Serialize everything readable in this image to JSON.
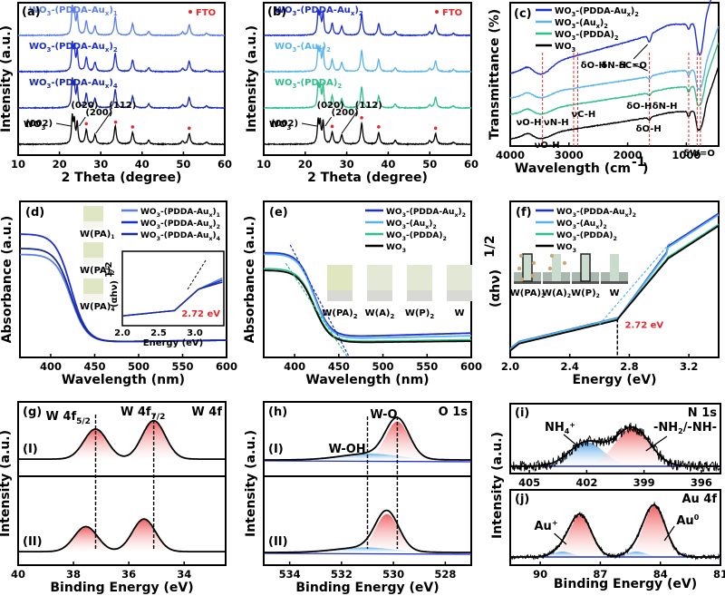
{
  "figure_title": "",
  "chart_data": [
    {
      "id": "a",
      "panel_label": "(a)",
      "type": "line",
      "xlabel": "2 Theta (degree)",
      "ylabel": "Intensity (a.u.)",
      "xlim": [
        10,
        60
      ],
      "xticks": [
        10,
        20,
        30,
        40,
        50,
        60
      ],
      "legend_marker": "FTO",
      "legend_marker_color": "#e8262b",
      "series": [
        {
          "name": "WO3-(PDDA-Aux)1",
          "label_main": "WO",
          "label_sub": "3",
          "label_rest": "-(PDDA-Au",
          "label_sub2": "x",
          "label_end": ")",
          "label_sub3": "1",
          "color": "#5b7fe8",
          "offset": 3
        },
        {
          "name": "WO3-(PDDA-Aux)2",
          "label_main": "WO",
          "label_sub": "3",
          "label_rest": "-(PDDA-Au",
          "label_sub2": "x",
          "label_end": ")",
          "label_sub3": "2",
          "color": "#1e2fd0",
          "offset": 2
        },
        {
          "name": "WO3-(PDDA-Aux)4",
          "label_main": "WO",
          "label_sub": "3",
          "label_rest": "-(PDDA-Au",
          "label_sub2": "x",
          "label_end": ")",
          "label_sub3": "4",
          "color": "#1a2aa8",
          "offset": 1
        },
        {
          "name": "WO3",
          "label_main": "WO",
          "label_sub": "3",
          "label_rest": "",
          "label_sub2": "",
          "label_end": "",
          "label_sub3": "",
          "color": "#000000",
          "offset": 0
        }
      ],
      "peaks": [
        [
          23.1,
          1.0
        ],
        [
          23.6,
          0.85
        ],
        [
          24.3,
          0.8
        ],
        [
          26.5,
          0.55
        ],
        [
          28.6,
          0.35
        ],
        [
          33.5,
          0.7
        ],
        [
          37.7,
          0.45
        ],
        [
          41.6,
          0.15
        ],
        [
          49.8,
          0.12
        ],
        [
          51.4,
          0.4
        ],
        [
          55.6,
          0.08
        ]
      ],
      "annotations": [
        "(002)",
        "(020)",
        "(200)",
        "(112)"
      ],
      "fto_peaks": [
        26.5,
        33.6,
        37.7,
        51.4
      ]
    },
    {
      "id": "b",
      "panel_label": "(b)",
      "type": "line",
      "xlabel": "2 Theta (degree)",
      "ylabel": "Intensity (a.u.)",
      "xlim": [
        10,
        60
      ],
      "xticks": [
        10,
        20,
        30,
        40,
        50,
        60
      ],
      "legend_marker": "FTO",
      "legend_marker_color": "#e8262b",
      "series": [
        {
          "name": "WO3-(PDDA-Aux)2",
          "label_main": "WO",
          "label_sub": "3",
          "label_rest": "-(PDDA-Au",
          "label_sub2": "x",
          "label_end": ")",
          "label_sub3": "2",
          "color": "#1e2fd0",
          "offset": 3
        },
        {
          "name": "WO3-(Aux)2",
          "label_main": "WO",
          "label_sub": "3",
          "label_rest": "-(Au",
          "label_sub2": "x",
          "label_end": ")",
          "label_sub3": "2",
          "color": "#5ab4ec",
          "offset": 2
        },
        {
          "name": "WO3-(PDDA)2",
          "label_main": "WO",
          "label_sub": "3",
          "label_rest": "-(PDDA)",
          "label_sub2": "",
          "label_end": "",
          "label_sub3": "2",
          "color": "#2ec08a",
          "offset": 1
        },
        {
          "name": "WO3",
          "label_main": "WO",
          "label_sub": "3",
          "label_rest": "",
          "label_sub2": "",
          "label_end": "",
          "label_sub3": "",
          "color": "#000000",
          "offset": 0
        }
      ],
      "peaks": [
        [
          23.1,
          0.85
        ],
        [
          23.6,
          0.8
        ],
        [
          24.3,
          0.85
        ],
        [
          26.5,
          0.45
        ],
        [
          28.8,
          0.35
        ],
        [
          33.6,
          0.8
        ],
        [
          37.7,
          0.45
        ],
        [
          41.7,
          0.15
        ],
        [
          50.0,
          0.12
        ],
        [
          51.4,
          0.4
        ],
        [
          55.7,
          0.08
        ]
      ],
      "annotations": [
        "(002)",
        "(020)",
        "(200)",
        "(112)"
      ],
      "fto_peaks": [
        26.5,
        33.6,
        37.7,
        51.4
      ]
    },
    {
      "id": "c",
      "panel_label": "(c)",
      "type": "line",
      "xlabel": "Wavelength (cm-1)",
      "ylabel": "Transmittance (%)",
      "xlim": [
        4000,
        450
      ],
      "xticks": [
        4000,
        3000,
        2000,
        1000
      ],
      "series": [
        {
          "name": "WO3-(PDDA-Aux)2",
          "color": "#1e2fd0",
          "offset": 3
        },
        {
          "name": "WO3-(Aux)2",
          "color": "#5ab4ec",
          "offset": 2
        },
        {
          "name": "WO3-(PDDA)2",
          "color": "#2ec08a",
          "offset": 1
        },
        {
          "name": "WO3",
          "color": "#000000",
          "offset": 0
        }
      ],
      "legend_labels": [
        {
          "main": "WO",
          "sub": "3",
          "rest": "-(PDDA-Au",
          "sub2": "x",
          "end": ")",
          "sub3": "2",
          "color": "#1e2fd0"
        },
        {
          "main": "WO",
          "sub": "3",
          "rest": "-(Au",
          "sub2": "x",
          "end": ")",
          "sub3": "2",
          "color": "#5ab4ec"
        },
        {
          "main": "WO",
          "sub": "3",
          "rest": "-(PDDA)",
          "sub2": "",
          "end": "",
          "sub3": "2",
          "color": "#2ec08a"
        },
        {
          "main": "WO",
          "sub": "3",
          "rest": "",
          "sub2": "",
          "end": "",
          "sub3": "",
          "color": "#000000"
        }
      ],
      "reference_lines": [
        3450,
        2920,
        2850,
        1630,
        960,
        815,
        760
      ],
      "annotations": [
        "δO-H",
        "δN-H",
        "δC=O",
        "νC-H",
        "νO-H",
        "νN-H",
        "δO-H",
        "δN-H",
        "δO-H",
        "νO-H",
        "δW=O"
      ]
    },
    {
      "id": "d",
      "panel_label": "(d)",
      "type": "line",
      "xlabel": "Wavelength (nm)",
      "ylabel": "Absorbance (a.u.)",
      "xlim": [
        365,
        600
      ],
      "xticks": [
        400,
        450,
        500,
        550,
        600
      ],
      "series": [
        {
          "name": "WO3-(PDDA-Aux)1",
          "color": "#5b7fe8",
          "start": 0.78
        },
        {
          "name": "WO3-(PDDA-Aux)2",
          "color": "#1e2fd0",
          "start": 0.95
        },
        {
          "name": "WO3-(PDDA-Aux)4",
          "color": "#1a2a9a",
          "start": 0.83
        }
      ],
      "legend_labels": [
        {
          "main": "WO",
          "sub": "3",
          "rest": "-(PDDA-Au",
          "sub2": "x",
          "end": ")",
          "sub3": "1"
        },
        {
          "main": "WO",
          "sub": "3",
          "rest": "-(PDDA-Au",
          "sub2": "x",
          "end": ")",
          "sub3": "2"
        },
        {
          "main": "WO",
          "sub": "3",
          "rest": "-(PDDA-Au",
          "sub2": "x",
          "end": ")",
          "sub3": "4"
        }
      ],
      "photo_labels": [
        "W(PA)1",
        "W(PA)2",
        "W(PA)4"
      ],
      "inset": {
        "xlabel": "Energy (eV)",
        "ylabel": "(αhν)1/2",
        "xlim": [
          2.0,
          3.4
        ],
        "xticks": [
          2.0,
          2.5,
          3.0
        ],
        "bandgap_label": "2.72 eV",
        "bandgap": 2.72
      }
    },
    {
      "id": "e",
      "panel_label": "(e)",
      "type": "line",
      "xlabel": "Wavelength (nm)",
      "ylabel": "Absorbance (a.u.)",
      "xlim": [
        365,
        600
      ],
      "xticks": [
        400,
        450,
        500,
        550,
        600
      ],
      "series": [
        {
          "name": "WO3-(PDDA-Aux)2",
          "color": "#1e2fd0",
          "start": 0.95,
          "tail": 0.1
        },
        {
          "name": "WO3-(Aux)2",
          "color": "#5ab4ec",
          "start": 0.93,
          "tail": 0.08
        },
        {
          "name": "WO3-(PDDA)2",
          "color": "#2ec08a",
          "start": 0.78,
          "tail": 0.05
        },
        {
          "name": "WO3",
          "color": "#000000",
          "start": 0.76,
          "tail": 0.04
        }
      ],
      "legend_labels": [
        {
          "main": "WO",
          "sub": "3",
          "rest": "-(PDDA-Au",
          "sub2": "x",
          "end": ")",
          "sub3": "2",
          "color": "#1e2fd0"
        },
        {
          "main": "WO",
          "sub": "3",
          "rest": "-(Au",
          "sub2": "x",
          "end": ")",
          "sub3": "2",
          "color": "#5ab4ec"
        },
        {
          "main": "WO",
          "sub": "3",
          "rest": "-(PDDA)",
          "sub2": "",
          "end": "",
          "sub3": "2",
          "color": "#2ec08a"
        },
        {
          "main": "WO",
          "sub": "3",
          "rest": "",
          "sub2": "",
          "end": "",
          "sub3": "",
          "color": "#000000"
        }
      ],
      "photo_labels": [
        "W(PA)2",
        "W(A)2",
        "W(P)2",
        "W"
      ]
    },
    {
      "id": "f",
      "panel_label": "(f)",
      "type": "line",
      "xlabel": "Energy (eV)",
      "ylabel": "(αhν)1/2",
      "xlim": [
        2.0,
        3.4
      ],
      "xticks": [
        2.0,
        2.4,
        2.8,
        3.2
      ],
      "bandgap": 2.72,
      "bandgap_label": "2.72 eV",
      "series": [
        {
          "name": "WO3-(PDDA-Aux)2",
          "color": "#1e2fd0"
        },
        {
          "name": "WO3-(Aux)2",
          "color": "#5ab4ec"
        },
        {
          "name": "WO3-(PDDA)2",
          "color": "#2ec08a"
        },
        {
          "name": "WO3",
          "color": "#000000"
        }
      ],
      "legend_labels": [
        {
          "main": "WO",
          "sub": "3",
          "rest": "-(PDDA-Au",
          "sub2": "x",
          "end": ")",
          "sub3": "2",
          "color": "#1e2fd0"
        },
        {
          "main": "WO",
          "sub": "3",
          "rest": "-(Au",
          "sub2": "x",
          "end": ")",
          "sub3": "2",
          "color": "#5ab4ec"
        },
        {
          "main": "WO",
          "sub": "3",
          "rest": "-(PDDA)",
          "sub2": "",
          "end": "",
          "sub3": "2",
          "color": "#2ec08a"
        },
        {
          "main": "WO",
          "sub": "3",
          "rest": "",
          "sub2": "",
          "end": "",
          "sub3": "",
          "color": "#000000"
        }
      ],
      "schematic_labels": [
        "W(PA)2",
        "W(A)2",
        "W(P)2",
        "W"
      ]
    },
    {
      "id": "g",
      "panel_label": "(g)",
      "type": "line",
      "xlabel": "Binding Energy (eV)",
      "ylabel": "Intensity (a.u.)",
      "xlim": [
        40,
        32.5
      ],
      "xticks": [
        40,
        38,
        36,
        34
      ],
      "region": "W 4f",
      "peak_labels": [
        "W 4f5/2",
        "W 4f7/2"
      ],
      "reference_lines": [
        37.2,
        35.1
      ],
      "series": [
        {
          "name": "(I)",
          "peaks": [
            [
              37.2,
              0.72
            ],
            [
              35.1,
              0.92
            ]
          ]
        },
        {
          "name": "(II)",
          "peaks": [
            [
              37.55,
              0.6
            ],
            [
              35.45,
              0.78
            ]
          ]
        }
      ]
    },
    {
      "id": "h",
      "panel_label": "(h)",
      "type": "line",
      "xlabel": "Binding Energy (eV)",
      "ylabel": "Intensity (a.u.)",
      "xlim": [
        535,
        527
      ],
      "xticks": [
        534,
        532,
        530,
        528
      ],
      "region": "O 1s",
      "peak_labels": [
        "W-O",
        "W-OH"
      ],
      "reference_lines": [
        531.0,
        529.85
      ],
      "series": [
        {
          "name": "(I)",
          "peaks": [
            [
              529.85,
              0.92
            ],
            [
              530.9,
              0.15
            ]
          ]
        },
        {
          "name": "(II)",
          "peaks": [
            [
              530.25,
              0.92
            ],
            [
              531.1,
              0.12
            ]
          ]
        }
      ]
    },
    {
      "id": "i",
      "panel_label": "(i)",
      "type": "line",
      "xlabel": "",
      "ylabel": "Intensity (a.u.)",
      "xlim": [
        406,
        395
      ],
      "xticks": [
        405,
        402,
        399,
        396
      ],
      "region": "N 1s",
      "peak_labels": [
        "NH4+",
        "-NH2/-NH-"
      ],
      "peaks": [
        [
          402.0,
          0.5
        ],
        [
          399.6,
          0.8
        ]
      ]
    },
    {
      "id": "j",
      "panel_label": "(j)",
      "type": "line",
      "xlabel": "Binding Energy (eV)",
      "ylabel": "Intensity (a.u.)",
      "xlim": [
        91.5,
        81
      ],
      "xticks": [
        90,
        87,
        84,
        81
      ],
      "region": "Au 4f",
      "peak_labels": [
        "Au+",
        "Au0"
      ],
      "peaks": [
        [
          88.0,
          0.78
        ],
        [
          84.3,
          0.95
        ],
        [
          88.9,
          0.1
        ],
        [
          85.2,
          0.1
        ]
      ]
    }
  ],
  "labels": {
    "ylabel_shared_gh": "Intensity (a.u.)",
    "i_series": [
      "(I)",
      "(II)"
    ]
  }
}
